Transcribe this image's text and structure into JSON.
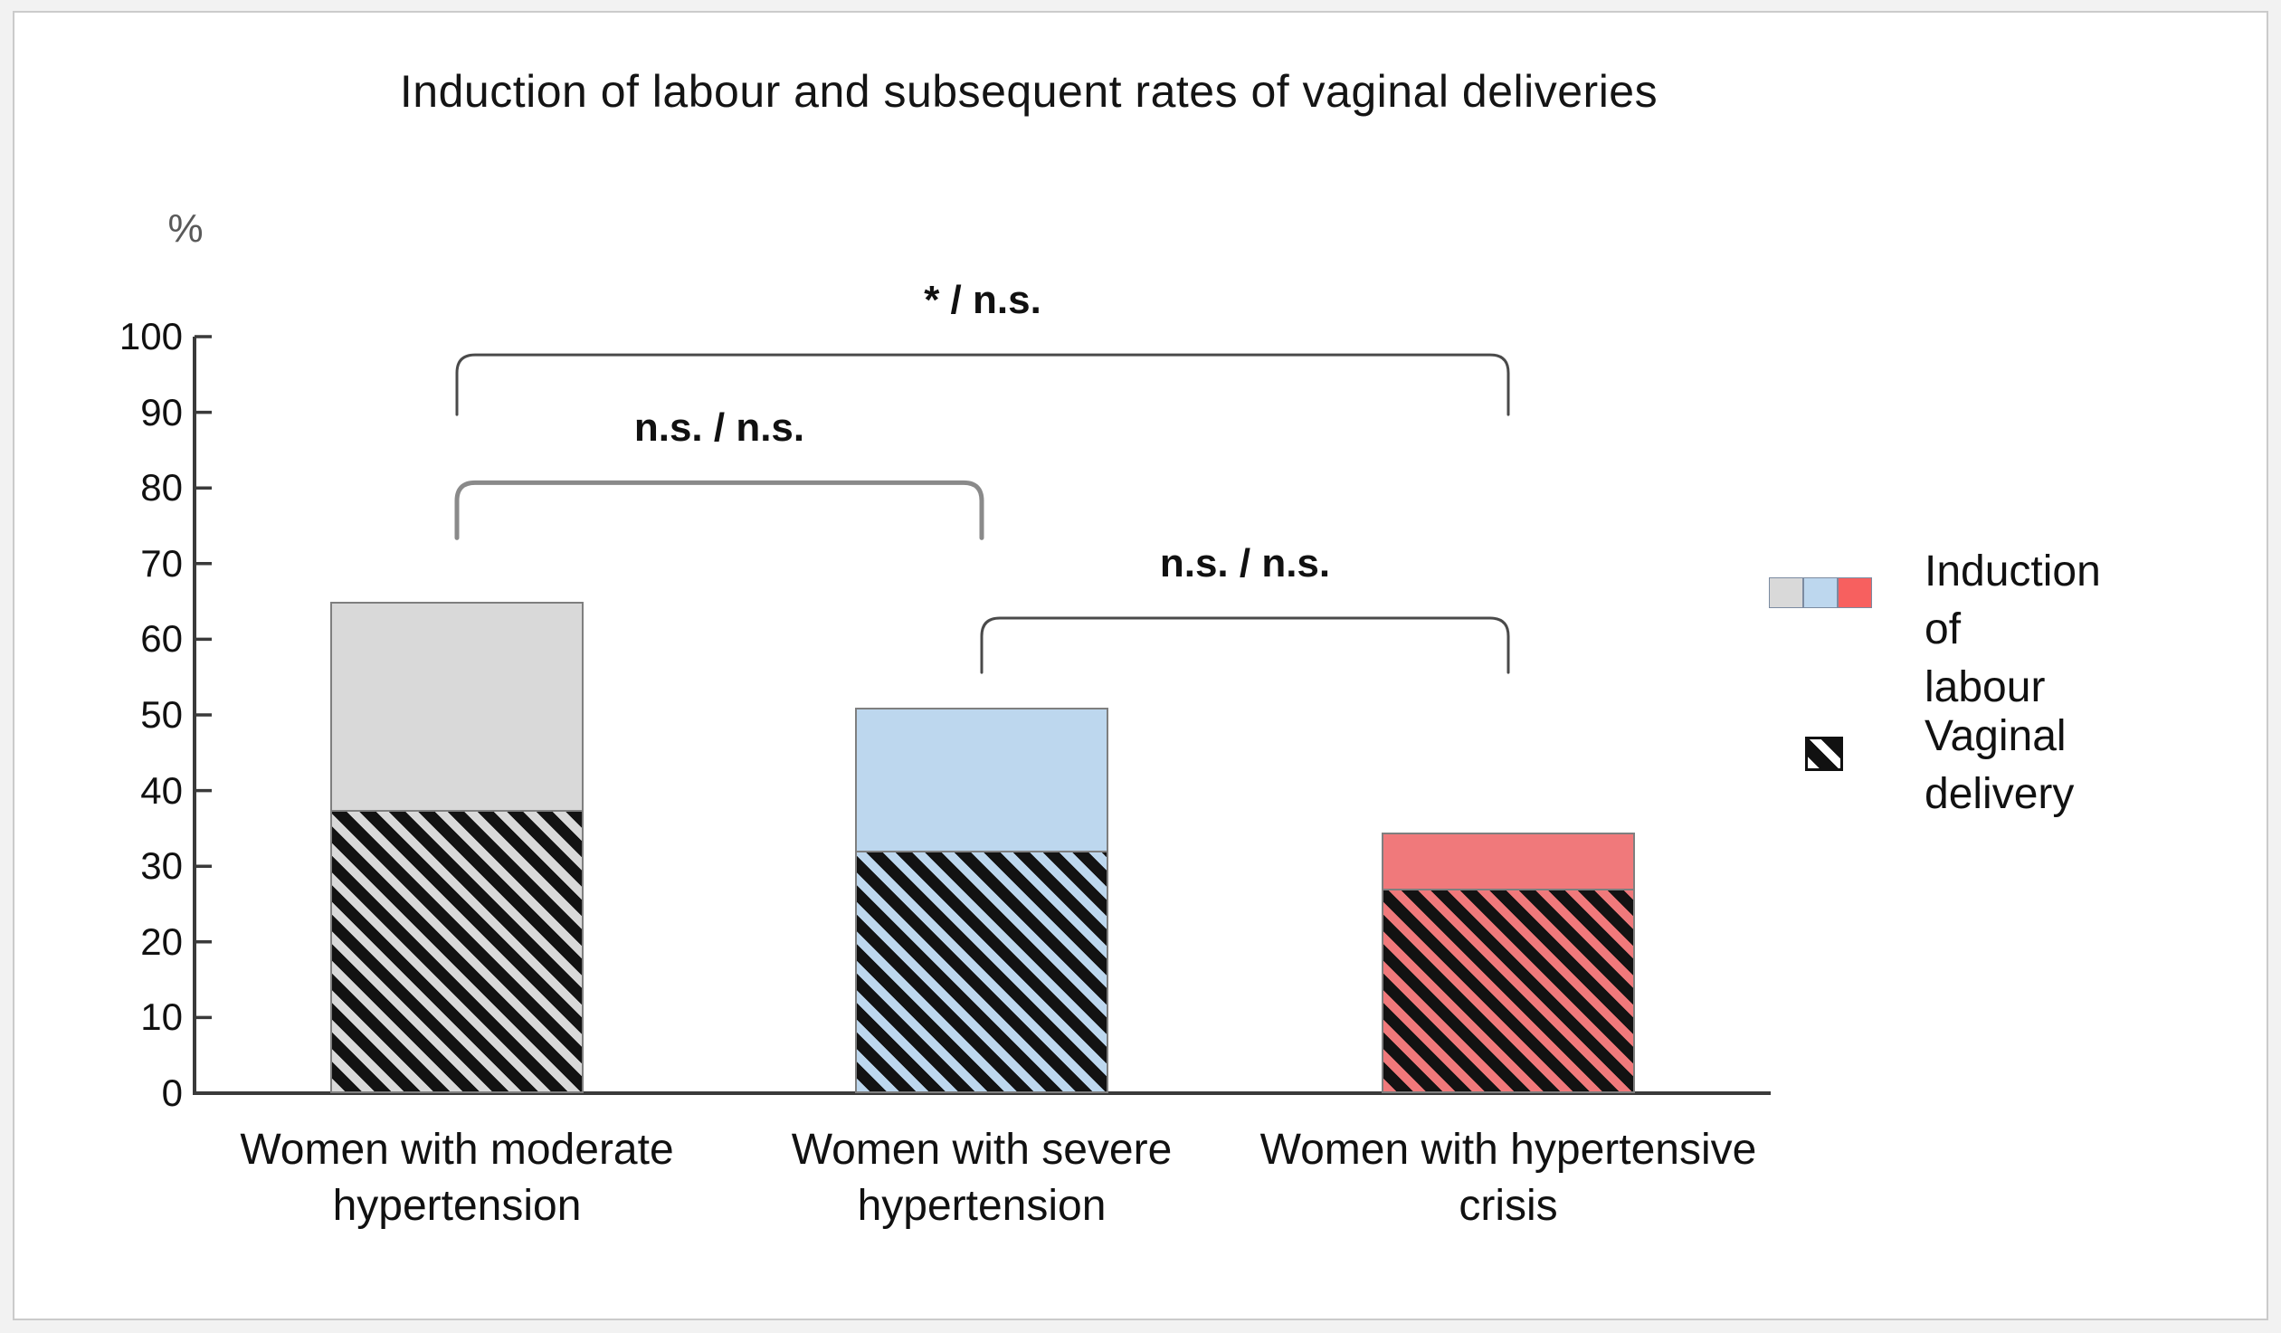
{
  "figure": {
    "background": "#ffffff",
    "frame_border": "#cbcbcb"
  },
  "chart_data": {
    "type": "bar",
    "subtype": "overlapped-columns-with-hatch",
    "title": "Induction of labour and subsequent rates of vaginal deliveries",
    "ylabel": "%",
    "xlabel": "",
    "ylim": [
      0,
      100
    ],
    "yticks": [
      0,
      10,
      20,
      30,
      40,
      50,
      60,
      70,
      80,
      90,
      100
    ],
    "grid": false,
    "legend_position": "right",
    "axis_color": "#3a3a3a",
    "ylabel_color": "#595959",
    "bar_border_color": "#7f7f7f",
    "categories": [
      "Women with moderate\nhypertension",
      "Women with severe\nhypertension",
      "Women with hypertensive\ncrisis"
    ],
    "series": [
      {
        "name": "Induction of labour",
        "style": "solid",
        "values": [
          65,
          51,
          34.5
        ],
        "colors": [
          "#d9d9d9",
          "#bdd7ee",
          "#f0797b"
        ]
      },
      {
        "name": "Vaginal delivery",
        "style": "diagonal-hatch",
        "values": [
          37.5,
          32,
          27
        ],
        "hatch_color": "#121212",
        "background_colors": [
          "#d9d9d9",
          "#bdd7ee",
          "#f0797b"
        ]
      }
    ],
    "annotations": [
      {
        "label": "* / n.s.",
        "between": [
          0,
          2
        ],
        "line_pct": 97.6,
        "tail_pct": 89.7,
        "color": "#4a4a4a",
        "stroke": 3
      },
      {
        "label": "n.s. / n.s.",
        "between": [
          0,
          1
        ],
        "line_pct": 80.7,
        "tail_pct": 73.4,
        "color": "#8a8a8a",
        "stroke": 5
      },
      {
        "label": "n.s. / n.s.",
        "between": [
          1,
          2
        ],
        "line_pct": 62.8,
        "tail_pct": 55.6,
        "color": "#4a4a4a",
        "stroke": 3
      }
    ]
  },
  "legend": {
    "items": [
      {
        "label": "Induction of\nlabour",
        "swatches": [
          "#d9d9d9",
          "#bdd7ee",
          "#f7605f"
        ],
        "swatch_border": "#7b8ba1"
      },
      {
        "label": "Vaginal\ndelivery",
        "icon": "diagonal-hatch-icon"
      }
    ]
  }
}
